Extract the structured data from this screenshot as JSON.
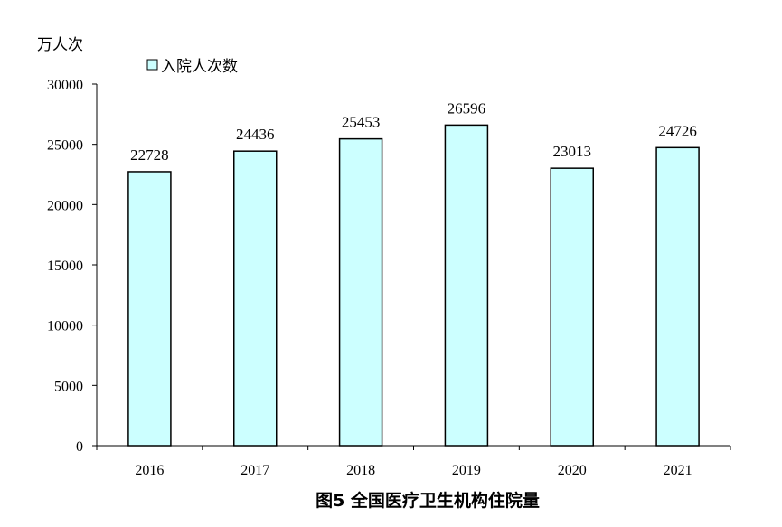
{
  "chart_data": {
    "type": "bar",
    "title": "图5  全国医疗卫生机构住院量",
    "unit_label": "万人次",
    "categories": [
      "2016",
      "2017",
      "2018",
      "2019",
      "2020",
      "2021"
    ],
    "series": [
      {
        "name": "入院人次数",
        "values": [
          22728,
          24436,
          25453,
          26596,
          23013,
          24726
        ]
      }
    ],
    "ylim": [
      0,
      30000
    ],
    "yticks": [
      0,
      5000,
      10000,
      15000,
      20000,
      25000,
      30000
    ],
    "grid": false,
    "legend_position": "top-left",
    "colors": {
      "bar_fill": "#CCFFFF",
      "bar_stroke": "#000000"
    }
  }
}
